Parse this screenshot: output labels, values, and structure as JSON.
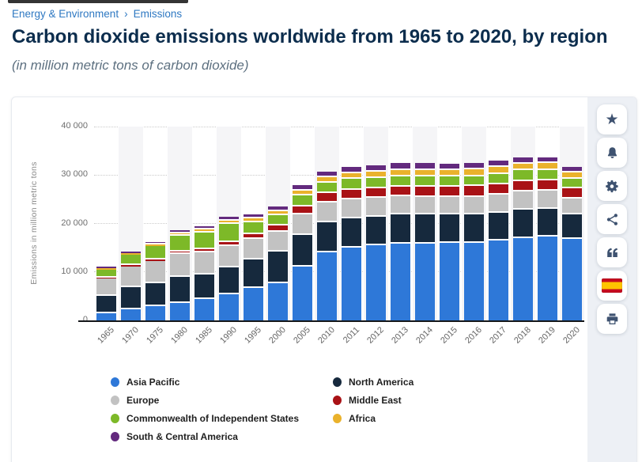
{
  "breadcrumb": {
    "separator": "›",
    "items": [
      "Energy & Environment",
      "Emissions"
    ]
  },
  "header": {
    "title": "Carbon dioxide emissions worldwide from 1965 to 2020, by region",
    "subtitle": "(in million metric tons of carbon dioxide)"
  },
  "action_rail": {
    "buttons": [
      {
        "id": "favorite",
        "icon": "star-icon"
      },
      {
        "id": "notifications",
        "icon": "bell-icon"
      },
      {
        "id": "settings",
        "icon": "gear-icon"
      },
      {
        "id": "share",
        "icon": "share-icon"
      },
      {
        "id": "cite",
        "icon": "quote-icon"
      },
      {
        "id": "language",
        "icon": "spanish-flag-icon"
      },
      {
        "id": "print",
        "icon": "printer-icon"
      }
    ]
  },
  "colors": {
    "breadcrumb_link": "#2e78c2",
    "title_text": "#0c2d4d",
    "rail_icon": "#3e5270",
    "rail_background": "#edf0f5",
    "flag_red": "#C60B1E",
    "flag_yellow": "#FFC400",
    "band": "#f5f5f7",
    "gridline": "#cbcbcb"
  },
  "chart_data": {
    "type": "bar",
    "stacked": true,
    "ylabel": "Emissions in million metric tons",
    "xlabel": "",
    "ylim": [
      0,
      40000
    ],
    "grid": "horizontal dotted",
    "background_bands": "alternate columns shaded starting at 1970",
    "legend_position": "bottom, two columns",
    "y_ticks": [
      {
        "value": 0,
        "label": "0"
      },
      {
        "value": 10000,
        "label": "10 000"
      },
      {
        "value": 20000,
        "label": "20 000"
      },
      {
        "value": 30000,
        "label": "30 000"
      },
      {
        "value": 40000,
        "label": "40 000"
      }
    ],
    "categories": [
      "1965",
      "1970",
      "1975",
      "1980",
      "1985",
      "1990",
      "1995",
      "2000",
      "2005",
      "2010",
      "2011",
      "2012",
      "2013",
      "2014",
      "2015",
      "2016",
      "2017",
      "2018",
      "2019",
      "2020"
    ],
    "series": [
      {
        "name": "Asia Pacific",
        "color": "#2E78D8",
        "values": [
          1500,
          2300,
          2900,
          3650,
          4400,
          5350,
          6650,
          7700,
          11050,
          14050,
          14950,
          15450,
          15800,
          15900,
          15950,
          16050,
          16450,
          16950,
          17300,
          16750
        ]
      },
      {
        "name": "North America",
        "color": "#16293D",
        "values": [
          3600,
          4550,
          4850,
          5300,
          5150,
          5550,
          5900,
          6450,
          6600,
          6200,
          6050,
          5900,
          6000,
          6050,
          5900,
          5800,
          5750,
          5900,
          5800,
          5150
        ]
      },
      {
        "name": "Europe",
        "color": "#C2C2C2",
        "values": [
          3600,
          4300,
          4450,
          4700,
          4450,
          4400,
          4200,
          4100,
          4300,
          4100,
          4000,
          3900,
          3800,
          3600,
          3650,
          3700,
          3750,
          3700,
          3600,
          3200
        ]
      },
      {
        "name": "Middle East",
        "color": "#A91216",
        "values": [
          150,
          250,
          350,
          500,
          700,
          900,
          1100,
          1300,
          1600,
          1900,
          1950,
          2000,
          2050,
          2100,
          2150,
          2200,
          2200,
          2200,
          2150,
          2100
        ]
      },
      {
        "name": "Commonwealth of Independent States",
        "color": "#7DB928",
        "values": [
          1650,
          2150,
          2750,
          3250,
          3500,
          3700,
          2400,
          2100,
          2200,
          2100,
          2200,
          2200,
          2150,
          2100,
          2050,
          2050,
          2100,
          2200,
          2200,
          2100
        ]
      },
      {
        "name": "Africa",
        "color": "#EAB22C",
        "values": [
          250,
          300,
          400,
          550,
          650,
          750,
          850,
          950,
          1100,
          1200,
          1200,
          1250,
          1300,
          1350,
          1350,
          1400,
          1400,
          1400,
          1400,
          1300
        ]
      },
      {
        "name": "South & Central America",
        "color": "#632A7E",
        "values": [
          300,
          400,
          500,
          600,
          600,
          700,
          800,
          950,
          1000,
          1200,
          1250,
          1300,
          1350,
          1350,
          1350,
          1300,
          1300,
          1250,
          1200,
          1100
        ]
      }
    ]
  },
  "legend": {
    "columns": [
      [
        {
          "label": "Asia Pacific",
          "color": "#2E78D8"
        },
        {
          "label": "Europe",
          "color": "#C2C2C2"
        },
        {
          "label": "Commonwealth of Independent States",
          "color": "#7DB928"
        },
        {
          "label": "South & Central America",
          "color": "#632A7E"
        }
      ],
      [
        {
          "label": "North America",
          "color": "#16293D"
        },
        {
          "label": "Middle East",
          "color": "#A91216"
        },
        {
          "label": "Africa",
          "color": "#EAB22C"
        }
      ]
    ]
  }
}
